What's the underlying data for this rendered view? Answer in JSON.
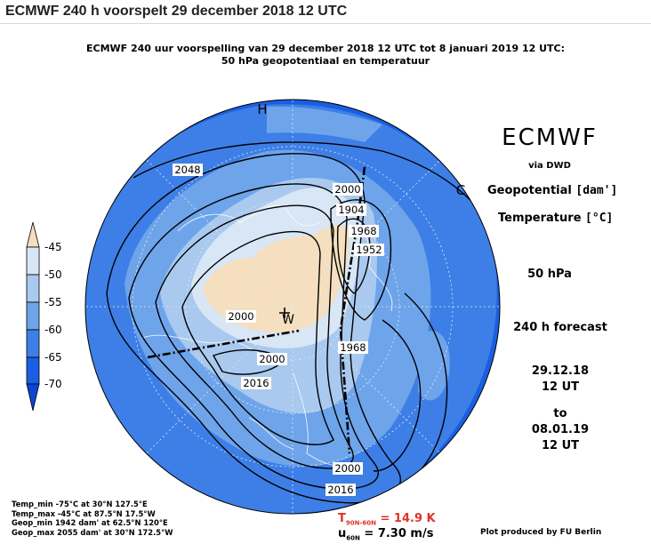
{
  "page_title": "ECMWF 240 h voorspelt 29 december 2018 12 UTC",
  "map": {
    "subtitle_line1": "ECMWF 240 uur voorspelling van 29 december 2018 12 UTC tot 8 januari 2019 12 UTC:",
    "subtitle_line2": "50 hPa geopotentiaal en temperatuur",
    "brand": "ECMWF",
    "via": "via DWD",
    "geopotential_label": "Geopotential",
    "geopotential_unit": "[dam']",
    "temperature_label": "Temperature",
    "temperature_unit": "[°C]",
    "level": "50 hPa",
    "forecast": "240 h forecast",
    "date_from": "29.12.18",
    "time_from": "12 UT",
    "to": "to",
    "date_to": "08.01.19",
    "time_to": "12 UT",
    "pressure_marks": {
      "high": "H",
      "low": "W",
      "cold": "C"
    },
    "contour_labels": [
      "2048",
      "2000",
      "1904",
      "1968",
      "1952",
      "2000",
      "1968",
      "2000",
      "2016",
      "2000",
      "2016"
    ],
    "legend": {
      "values": [
        "-45",
        "-50",
        "-55",
        "-60",
        "-65",
        "-70"
      ],
      "colors": [
        "#f5dfbe",
        "#d8e6f5",
        "#a9c9ef",
        "#6ea4ea",
        "#3d7fe6",
        "#1a5fe3",
        "#0a46d6"
      ]
    },
    "stats": {
      "temp_min": "Temp_min  -75°C at 30°N 127.5°E",
      "temp_max": "Temp_max  -45°C at 87.5°N 17.5°W",
      "geop_min": "Geop_min 1942 dam' at 62.5°N 120°E",
      "geop_max": "Geop_max 2055 dam' at 30°N 172.5°W"
    },
    "t_label": "T",
    "t_sub": "90N-60N",
    "t_value": "= 14.9 K",
    "u_label": "u",
    "u_sub": "60N",
    "u_value": "= 7.30 m/s",
    "credit": "Plot produced by FU Berlin"
  }
}
